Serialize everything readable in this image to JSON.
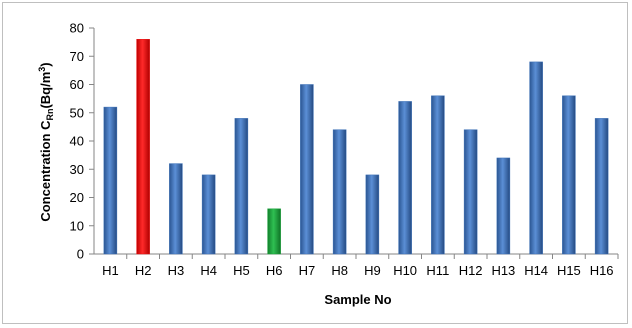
{
  "chart_data": {
    "type": "bar",
    "title": "",
    "xlabel": "Sample No",
    "ylabel": "Concentration C",
    "ylabel_sub": "Rn",
    "ylabel_unit": "(Bq/m",
    "ylabel_sup": "3",
    "ylabel_close": ")",
    "ylim": [
      0,
      80
    ],
    "ytick_step": 10,
    "grid": false,
    "legend": "none",
    "categories": [
      "H1",
      "H2",
      "H3",
      "H4",
      "H5",
      "H6",
      "H7",
      "H8",
      "H9",
      "H10",
      "H11",
      "H12",
      "H13",
      "H14",
      "H15",
      "H16"
    ],
    "values": [
      52,
      76,
      32,
      28,
      48,
      16,
      60,
      44,
      28,
      54,
      56,
      44,
      34,
      68,
      56,
      48
    ],
    "colors": {
      "default": "#3a6fb5",
      "highlight_max": "#e81010",
      "highlight_min": "#1aa33a"
    },
    "highlights": {
      "H2": "highlight_max",
      "H6": "highlight_min"
    }
  }
}
